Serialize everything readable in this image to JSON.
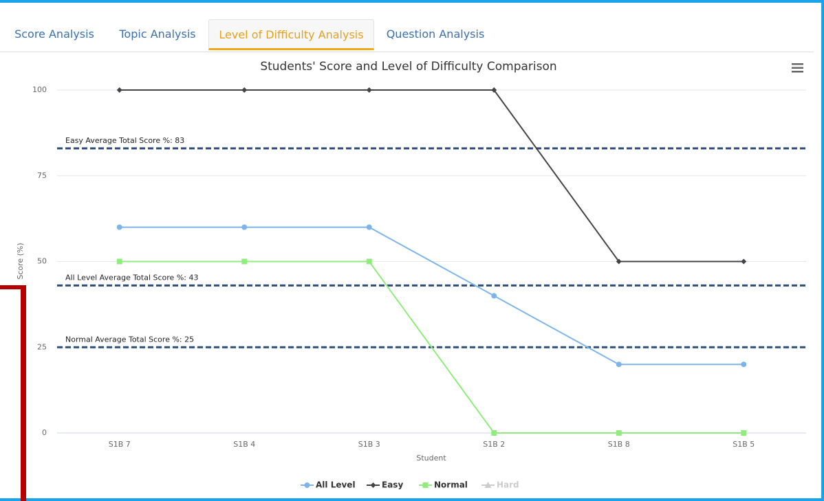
{
  "tabs": [
    {
      "label": "Score Analysis"
    },
    {
      "label": "Topic Analysis"
    },
    {
      "label": "Level of Difficulty Analysis",
      "active": true
    },
    {
      "label": "Question Analysis"
    }
  ],
  "chart_data": {
    "type": "line",
    "title": "Students' Score and Level of Difficulty Comparison",
    "x_label": "Student",
    "y_label": "Score (%)",
    "categories": [
      "S1B 7",
      "S1B 4",
      "S1B 3",
      "S1B 2",
      "S1B 8",
      "S1B 5"
    ],
    "series": [
      {
        "name": "All Level",
        "color": "#7cb5ec",
        "marker": "circle",
        "values": [
          60,
          60,
          60,
          40,
          20,
          20
        ]
      },
      {
        "name": "Easy",
        "color": "#434348",
        "marker": "diamond",
        "values": [
          100,
          100,
          100,
          100,
          50,
          50
        ]
      },
      {
        "name": "Normal",
        "color": "#90ed7d",
        "marker": "square",
        "values": [
          50,
          50,
          50,
          0,
          0,
          0
        ]
      },
      {
        "name": "Hard",
        "color": "#cccccc",
        "marker": "triangle",
        "visible": false,
        "values": [
          null,
          null,
          null,
          null,
          null,
          null
        ]
      }
    ],
    "plot_lines": [
      {
        "value": 83,
        "label": "Easy Average Total Score %: 83",
        "color": "#2e4d7b"
      },
      {
        "value": 43,
        "label": "All Level Average Total Score %: 43",
        "color": "#2e4d7b"
      },
      {
        "value": 25,
        "label": "Normal Average Total Score %: 25",
        "color": "#2e4d7b"
      }
    ],
    "ylim": [
      0,
      100
    ],
    "yticks": [
      0,
      25,
      50,
      75,
      100
    ],
    "grid": true,
    "legend": "bottom"
  }
}
